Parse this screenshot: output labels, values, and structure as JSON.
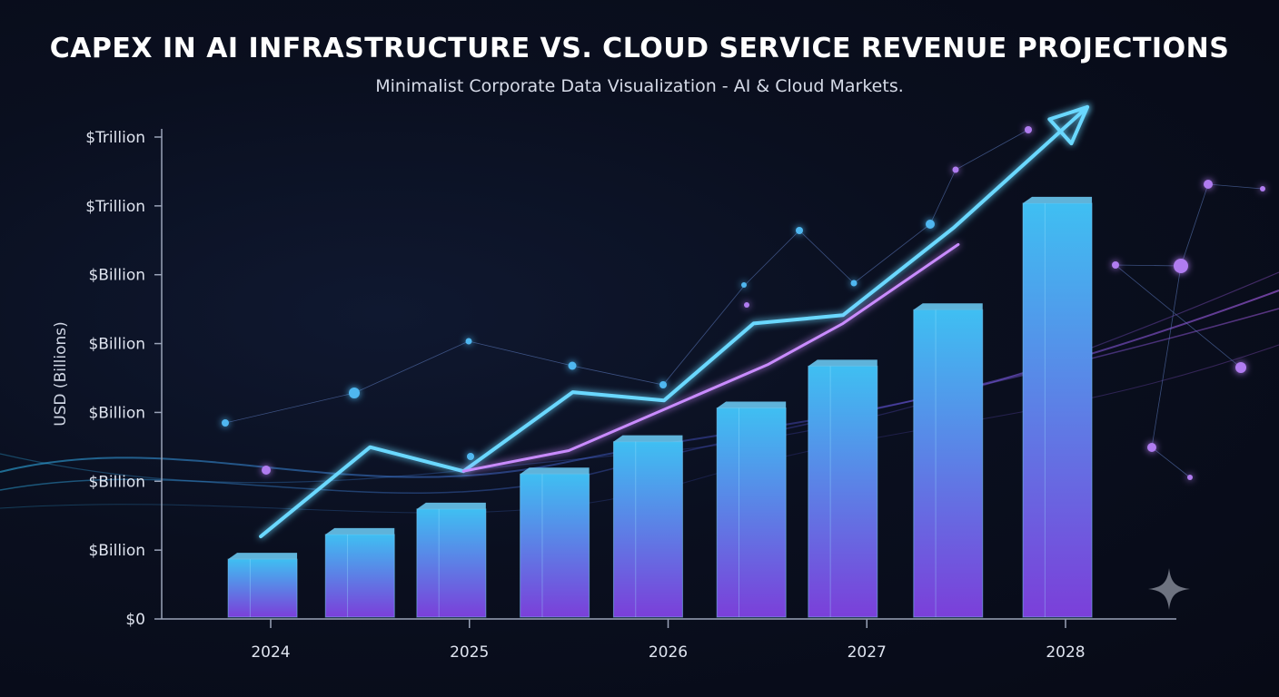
{
  "header": {
    "title": "CAPEX IN AI INFRASTRUCTURE VS. CLOUD SERVICE REVENUE PROJECTIONS",
    "subtitle": "Minimalist Corporate Data Visualization - AI & Cloud Markets."
  },
  "colors": {
    "bar_top": "#3fbff2",
    "bar_bottom": "#7b3fd9",
    "line_capex": "#6ad8ff",
    "line_revenue": "#c98bff",
    "axis": "#9aa3b8",
    "background": "#0a0f1f"
  },
  "chart_data": {
    "type": "bar",
    "title": "CAPEX IN AI INFRASTRUCTURE VS. CLOUD SERVICE REVENUE PROJECTIONS",
    "subtitle": "Minimalist Corporate Data Visualization - AI & Cloud Markets.",
    "xlabel": "",
    "ylabel": "USD (Billions)",
    "x_ticks": [
      "2024",
      "2025",
      "2026",
      "2027",
      "2028"
    ],
    "y_ticks": [
      "$0",
      "$Billion",
      "$Billion",
      "$Billion",
      "$Billion",
      "$Billion",
      "$Trillion",
      "$Trillion"
    ],
    "ylim": [
      0,
      7
    ],
    "grid": false,
    "bars": [
      {
        "x": 2023.95,
        "value": 0.87
      },
      {
        "x": 2024.44,
        "value": 1.23
      },
      {
        "x": 2024.9,
        "value": 1.6
      },
      {
        "x": 2025.42,
        "value": 2.11
      },
      {
        "x": 2025.89,
        "value": 2.58
      },
      {
        "x": 2026.41,
        "value": 3.07
      },
      {
        "x": 2026.87,
        "value": 3.68
      },
      {
        "x": 2027.4,
        "value": 4.5
      },
      {
        "x": 2027.95,
        "value": 6.05
      }
    ],
    "series": [
      {
        "type": "line",
        "points": [
          [
            2023.95,
            1.2
          ],
          [
            2024.5,
            2.5
          ],
          [
            2024.97,
            2.15
          ],
          [
            2025.52,
            3.3
          ],
          [
            2025.98,
            3.18
          ],
          [
            2026.43,
            4.3
          ],
          [
            2026.88,
            4.42
          ],
          [
            2027.44,
            5.7
          ],
          [
            2028.11,
            7.45
          ]
        ]
      },
      {
        "type": "line",
        "points": [
          [
            2024.97,
            2.15
          ],
          [
            2025.5,
            2.45
          ],
          [
            2025.98,
            3.05
          ],
          [
            2026.5,
            3.7
          ],
          [
            2026.88,
            4.3
          ],
          [
            2027.46,
            5.45
          ]
        ]
      }
    ]
  }
}
